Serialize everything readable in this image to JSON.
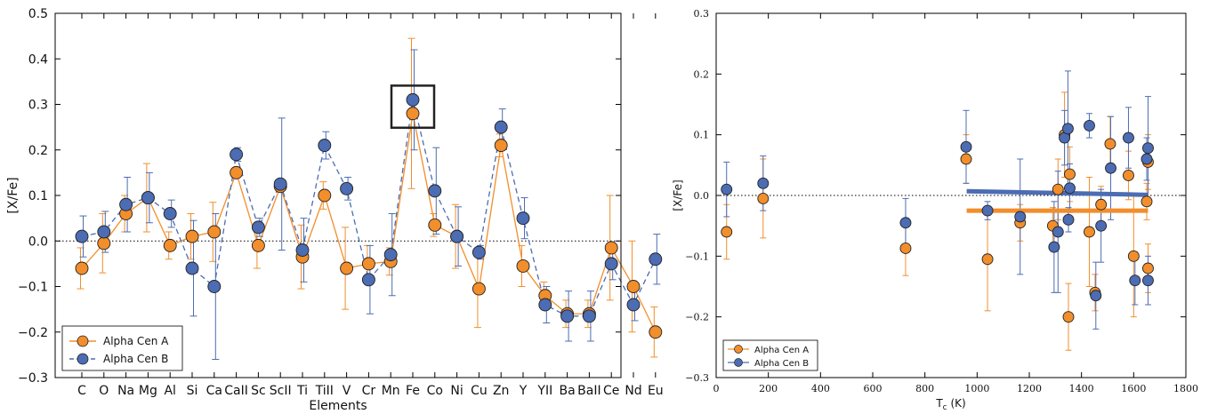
{
  "chart_data": [
    {
      "type": "line",
      "xlabel": "Elements",
      "ylabel": "[X/Fe]",
      "ylim": [
        -0.3,
        0.5
      ],
      "yticks": [
        "−0.3",
        "−0.2",
        "−0.1",
        "0.0",
        "0.1",
        "0.2",
        "0.3",
        "0.4",
        "0.5"
      ],
      "categories": [
        "C",
        "O",
        "Na",
        "Mg",
        "Al",
        "Si",
        "Ca",
        "CaII",
        "Sc",
        "ScII",
        "Ti",
        "TiII",
        "V",
        "Cr",
        "Mn",
        "Fe",
        "Co",
        "Ni",
        "Cu",
        "Zn",
        "Y",
        "YII",
        "Ba",
        "BaII",
        "Ce",
        "Nd",
        "Eu"
      ],
      "tick_labels": [
        "C",
        "O",
        "Na",
        "Mg",
        "Al",
        "Si",
        "Ca",
        "CaII",
        "Sc",
        "ScII",
        "Ti",
        "TiII",
        "V",
        "Cr",
        "Mn",
        "Fe",
        "Co",
        "Ni",
        "Cu",
        "Zn",
        "Y",
        "YII",
        "Ba",
        "BaII",
        "Ce",
        "Nd",
        "Eu"
      ],
      "reference_line": 0.0,
      "highlight_category": "Fe",
      "legend_placement": "lower-left",
      "series": [
        {
          "name": "Alpha Cen A",
          "color": "#f28e2b",
          "linestyle": "solid",
          "values": [
            -0.06,
            -0.005,
            0.06,
            0.095,
            -0.01,
            0.01,
            0.02,
            0.15,
            -0.01,
            0.12,
            -0.035,
            0.1,
            -0.06,
            -0.05,
            -0.045,
            0.28,
            0.035,
            0.01,
            -0.105,
            0.21,
            -0.055,
            -0.12,
            -0.16,
            -0.16,
            -0.015,
            -0.1,
            -0.2
          ],
          "errors": [
            0.045,
            0.065,
            0.04,
            0.075,
            0.03,
            0.05,
            0.065,
            0.01,
            0.05,
            0.01,
            0.07,
            0.03,
            0.09,
            0.04,
            0.03,
            0.165,
            0.025,
            0.07,
            0.085,
            0.025,
            0.045,
            0.03,
            0.03,
            0.03,
            0.115,
            0.1,
            0.055
          ]
        },
        {
          "name": "Alpha Cen B",
          "color": "#4c6cb3",
          "linestyle": "dashed",
          "values": [
            0.01,
            0.02,
            0.08,
            0.095,
            0.06,
            -0.06,
            -0.1,
            0.19,
            0.03,
            0.125,
            -0.02,
            0.21,
            0.115,
            -0.085,
            -0.03,
            0.31,
            0.11,
            0.01,
            -0.025,
            0.25,
            0.05,
            -0.14,
            -0.165,
            -0.165,
            -0.05,
            -0.14,
            -0.04
          ],
          "errors": [
            0.045,
            0.045,
            0.06,
            0.055,
            0.03,
            0.105,
            0.16,
            0.015,
            0.02,
            0.145,
            0.07,
            0.03,
            0.025,
            0.075,
            0.09,
            0.11,
            0.095,
            0.065,
            0.015,
            0.04,
            0.045,
            0.04,
            0.055,
            0.055,
            0.035,
            0.035,
            0.055
          ]
        }
      ]
    },
    {
      "type": "scatter",
      "xlabel": "T",
      "xlabel_sub": "c",
      "xlabel_unit": " (K)",
      "ylabel": "[X/Fe]",
      "xlim": [
        0,
        1800
      ],
      "ylim": [
        -0.3,
        0.3
      ],
      "xticks": [
        "0",
        "200",
        "400",
        "600",
        "800",
        "1000",
        "1200",
        "1400",
        "1600",
        "1800"
      ],
      "yticks": [
        "−0.3",
        "−0.2",
        "−0.1",
        "0.0",
        "0.1",
        "0.2",
        "0.3"
      ],
      "reference_line": 0.0,
      "legend_placement": "lower-left",
      "series": [
        {
          "name": "Alpha Cen A",
          "color": "#f28e2b",
          "fit": [
            [
              960,
              -0.025
            ],
            [
              1655,
              -0.025
            ]
          ],
          "points": [
            [
              40,
              -0.06,
              0.045
            ],
            [
              180,
              -0.005,
              0.065
            ],
            [
              726,
              -0.087,
              0.045
            ],
            [
              958,
              0.06,
              0.04
            ],
            [
              1040,
              -0.105,
              0.085
            ],
            [
              1165,
              -0.045,
              0.03
            ],
            [
              1290,
              -0.05,
              0.03
            ],
            [
              1310,
              0.01,
              0.05
            ],
            [
              1335,
              0.1,
              0.07
            ],
            [
              1350,
              -0.2,
              0.055
            ],
            [
              1355,
              0.035,
              0.045
            ],
            [
              1430,
              -0.06,
              0.09
            ],
            [
              1452,
              -0.16,
              0.03
            ],
            [
              1475,
              -0.015,
              0.03
            ],
            [
              1510,
              0.085,
              0.045
            ],
            [
              1580,
              0.033,
              0.04
            ],
            [
              1600,
              -0.1,
              0.1
            ],
            [
              1650,
              -0.01,
              0.03
            ],
            [
              1655,
              0.055,
              0.045
            ],
            [
              1655,
              -0.12,
              0.04
            ]
          ]
        },
        {
          "name": "Alpha Cen B",
          "color": "#4c6cb3",
          "fit": [
            [
              960,
              0.007
            ],
            [
              1655,
              0.001
            ]
          ],
          "points": [
            [
              40,
              0.01,
              0.045
            ],
            [
              180,
              0.02,
              0.045
            ],
            [
              726,
              -0.045,
              0.04
            ],
            [
              958,
              0.08,
              0.06
            ],
            [
              1040,
              -0.025,
              0.015
            ],
            [
              1165,
              -0.035,
              0.095
            ],
            [
              1295,
              -0.085,
              0.075
            ],
            [
              1310,
              -0.06,
              0.1
            ],
            [
              1335,
              0.095,
              0.045
            ],
            [
              1348,
              0.11,
              0.095
            ],
            [
              1350,
              -0.04,
              0.02
            ],
            [
              1355,
              0.012,
              0.04
            ],
            [
              1430,
              0.115,
              0.02
            ],
            [
              1455,
              -0.165,
              0.055
            ],
            [
              1475,
              -0.05,
              0.06
            ],
            [
              1512,
              0.045,
              0.085
            ],
            [
              1580,
              0.095,
              0.05
            ],
            [
              1605,
              -0.14,
              0.04
            ],
            [
              1650,
              0.06,
              0.035
            ],
            [
              1655,
              0.078,
              0.085
            ],
            [
              1655,
              -0.14,
              0.04
            ]
          ]
        }
      ]
    }
  ]
}
